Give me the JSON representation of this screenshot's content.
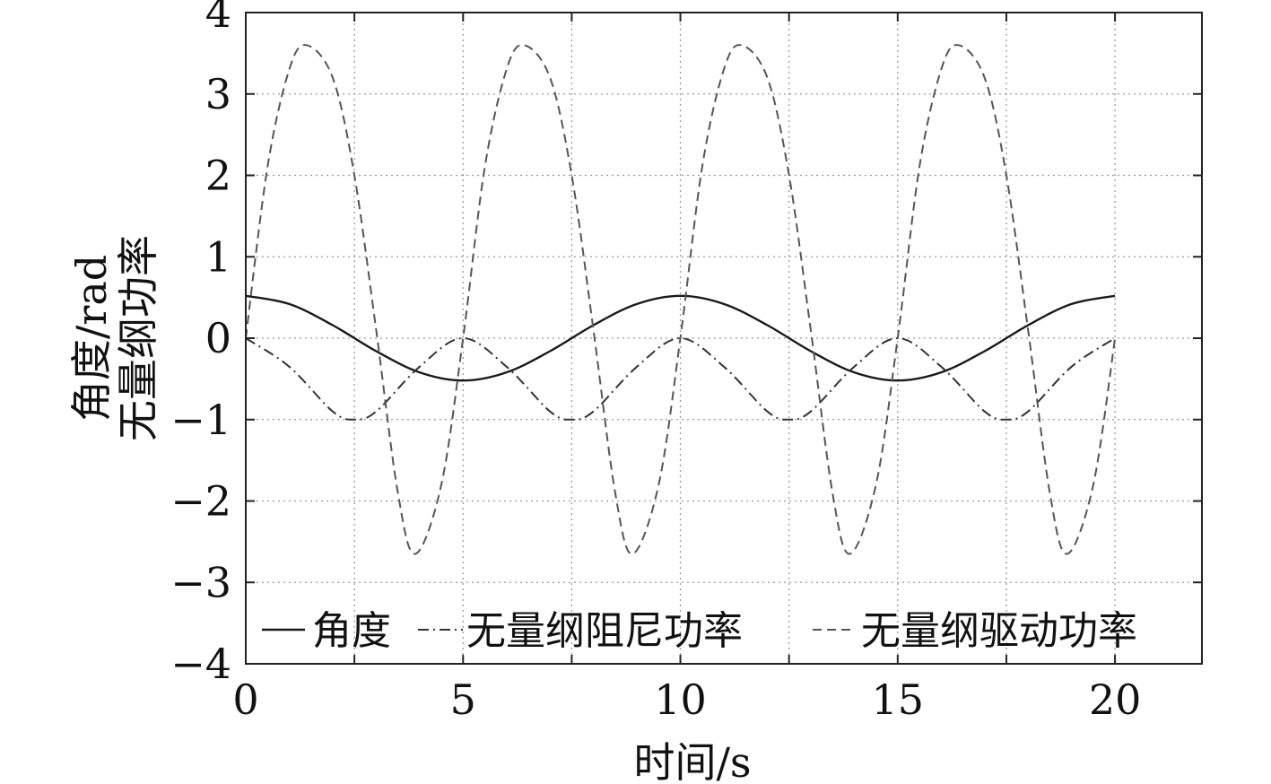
{
  "chart_data": {
    "type": "line",
    "title": "",
    "xlabel": "时间/s",
    "ylabel": [
      "角度/rad",
      "无量纲功率"
    ],
    "xlim": [
      0,
      22
    ],
    "ylim": [
      -4,
      4
    ],
    "x_ticks": [
      0,
      5,
      10,
      15,
      20
    ],
    "y_ticks": [
      -4,
      -3,
      -2,
      -1,
      0,
      1,
      2,
      3,
      4
    ],
    "grid": true,
    "legend_position": "bottom",
    "x_domain": [
      0,
      20
    ],
    "series": [
      {
        "name": "角度",
        "style": "solid",
        "color": "#1a1a1a",
        "x": [
          0,
          1,
          2,
          3,
          4,
          5,
          6,
          7,
          8,
          9,
          10,
          11,
          12,
          13,
          14,
          15,
          16,
          17,
          18,
          19,
          20
        ],
        "y": [
          0.52,
          0.42,
          0.16,
          -0.16,
          -0.42,
          -0.52,
          -0.42,
          -0.16,
          0.16,
          0.42,
          0.52,
          0.42,
          0.16,
          -0.16,
          -0.42,
          -0.52,
          -0.42,
          -0.16,
          0.16,
          0.42,
          0.52
        ]
      },
      {
        "name": "无量纲阻尼功率",
        "style": "dashdot",
        "color": "#333333",
        "x": [
          0,
          1,
          2,
          2.5,
          3,
          4,
          5,
          6,
          7,
          7.5,
          8,
          9,
          10,
          11,
          12,
          12.5,
          13,
          14,
          15,
          16,
          17,
          17.5,
          18,
          19,
          20
        ],
        "y": [
          0,
          -0.35,
          -0.9,
          -1,
          -0.9,
          -0.35,
          0,
          -0.35,
          -0.9,
          -1,
          -0.9,
          -0.35,
          0,
          -0.35,
          -0.9,
          -1,
          -0.9,
          -0.35,
          0,
          -0.35,
          -0.9,
          -1,
          -0.9,
          -0.35,
          0
        ]
      },
      {
        "name": "无量纲驱动功率",
        "style": "dashed",
        "color": "#555555",
        "x": [
          0,
          0.5,
          1,
          1.4,
          2,
          2.5,
          3,
          3.5,
          3.9,
          4.5,
          5,
          5.5,
          6,
          6.4,
          7,
          7.5,
          8,
          8.5,
          8.9,
          9.5,
          10,
          10.5,
          11,
          11.4,
          12,
          12.5,
          13,
          13.5,
          13.9,
          14.5,
          15,
          15.5,
          16,
          16.4,
          17,
          17.5,
          18,
          18.5,
          18.9,
          19.5,
          20
        ],
        "y": [
          0,
          2.1,
          3.3,
          3.6,
          3.2,
          2.0,
          0.1,
          -1.9,
          -2.65,
          -1.8,
          0,
          2.1,
          3.3,
          3.6,
          3.2,
          2.0,
          0.1,
          -1.9,
          -2.65,
          -1.8,
          0,
          2.1,
          3.3,
          3.6,
          3.2,
          2.0,
          0.1,
          -1.9,
          -2.65,
          -1.8,
          0,
          2.1,
          3.3,
          3.6,
          3.2,
          2.0,
          0.1,
          -1.9,
          -2.65,
          -1.8,
          0
        ]
      }
    ]
  }
}
